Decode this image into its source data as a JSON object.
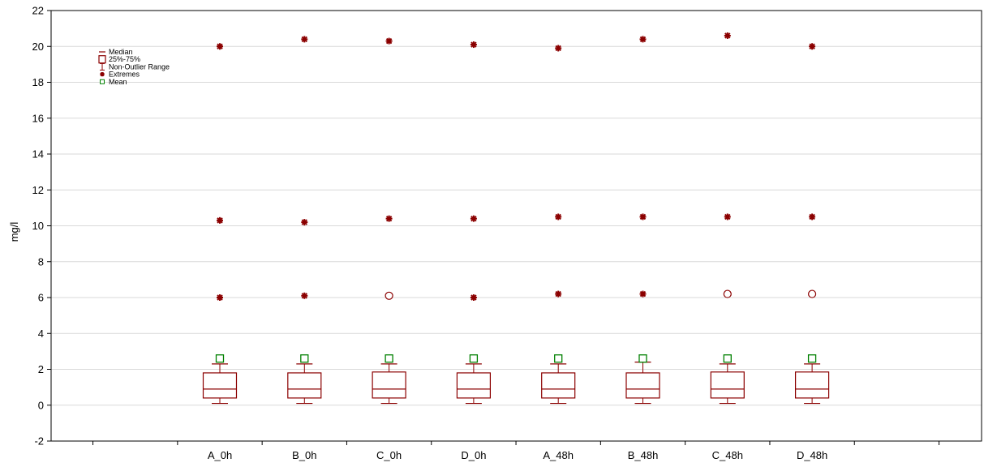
{
  "chart_data": {
    "type": "box",
    "title": "",
    "xlabel": "",
    "ylabel": "mg/l",
    "ylim": [
      -2,
      22
    ],
    "yticks": [
      -2,
      0,
      2,
      4,
      6,
      8,
      10,
      12,
      14,
      16,
      18,
      20,
      22
    ],
    "grid": true,
    "legend_position": "top-left",
    "categories": [
      "A_0h",
      "B_0h",
      "C_0h",
      "D_0h",
      "A_48h",
      "B_48h",
      "C_48h",
      "D_48h"
    ],
    "legend": [
      {
        "label": "Median",
        "symbol": "median"
      },
      {
        "label": "25%-75%",
        "symbol": "box"
      },
      {
        "label": "Non-Outlier Range",
        "symbol": "whisker"
      },
      {
        "label": "Extremes",
        "symbol": "extreme"
      },
      {
        "label": "Mean",
        "symbol": "mean"
      }
    ],
    "boxes": [
      {
        "category": "A_0h",
        "min": 0.1,
        "q1": 0.4,
        "median": 0.9,
        "q3": 1.8,
        "max": 2.3,
        "mean": 2.6,
        "outliers": [],
        "extremes": [
          6.0,
          10.3,
          20.0
        ]
      },
      {
        "category": "B_0h",
        "min": 0.1,
        "q1": 0.4,
        "median": 0.9,
        "q3": 1.8,
        "max": 2.3,
        "mean": 2.6,
        "outliers": [],
        "extremes": [
          6.1,
          10.2,
          20.4
        ]
      },
      {
        "category": "C_0h",
        "min": 0.1,
        "q1": 0.4,
        "median": 0.9,
        "q3": 1.85,
        "max": 2.3,
        "mean": 2.6,
        "outliers": [
          6.1
        ],
        "extremes": [
          10.4,
          20.3
        ]
      },
      {
        "category": "D_0h",
        "min": 0.1,
        "q1": 0.4,
        "median": 0.9,
        "q3": 1.8,
        "max": 2.3,
        "mean": 2.6,
        "outliers": [],
        "extremes": [
          6.0,
          10.4,
          20.1
        ]
      },
      {
        "category": "A_48h",
        "min": 0.1,
        "q1": 0.4,
        "median": 0.9,
        "q3": 1.8,
        "max": 2.3,
        "mean": 2.6,
        "outliers": [],
        "extremes": [
          6.2,
          10.5,
          19.9
        ]
      },
      {
        "category": "B_48h",
        "min": 0.1,
        "q1": 0.4,
        "median": 0.9,
        "q3": 1.8,
        "max": 2.4,
        "mean": 2.6,
        "outliers": [],
        "extremes": [
          6.2,
          10.5,
          20.4
        ]
      },
      {
        "category": "C_48h",
        "min": 0.1,
        "q1": 0.4,
        "median": 0.9,
        "q3": 1.85,
        "max": 2.3,
        "mean": 2.6,
        "outliers": [
          6.2
        ],
        "extremes": [
          10.5,
          20.6
        ]
      },
      {
        "category": "D_48h",
        "min": 0.1,
        "q1": 0.4,
        "median": 0.9,
        "q3": 1.85,
        "max": 2.3,
        "mean": 2.6,
        "outliers": [
          6.2
        ],
        "extremes": [
          10.5,
          20.0
        ]
      }
    ],
    "colors": {
      "box": "#8b0000",
      "mean": "#008000",
      "grid": "#d9d9d9",
      "axis": "#000000"
    }
  }
}
